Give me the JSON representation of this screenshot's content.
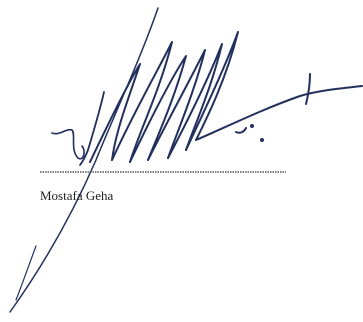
{
  "signature": {
    "name": "Mostafa Geha"
  }
}
